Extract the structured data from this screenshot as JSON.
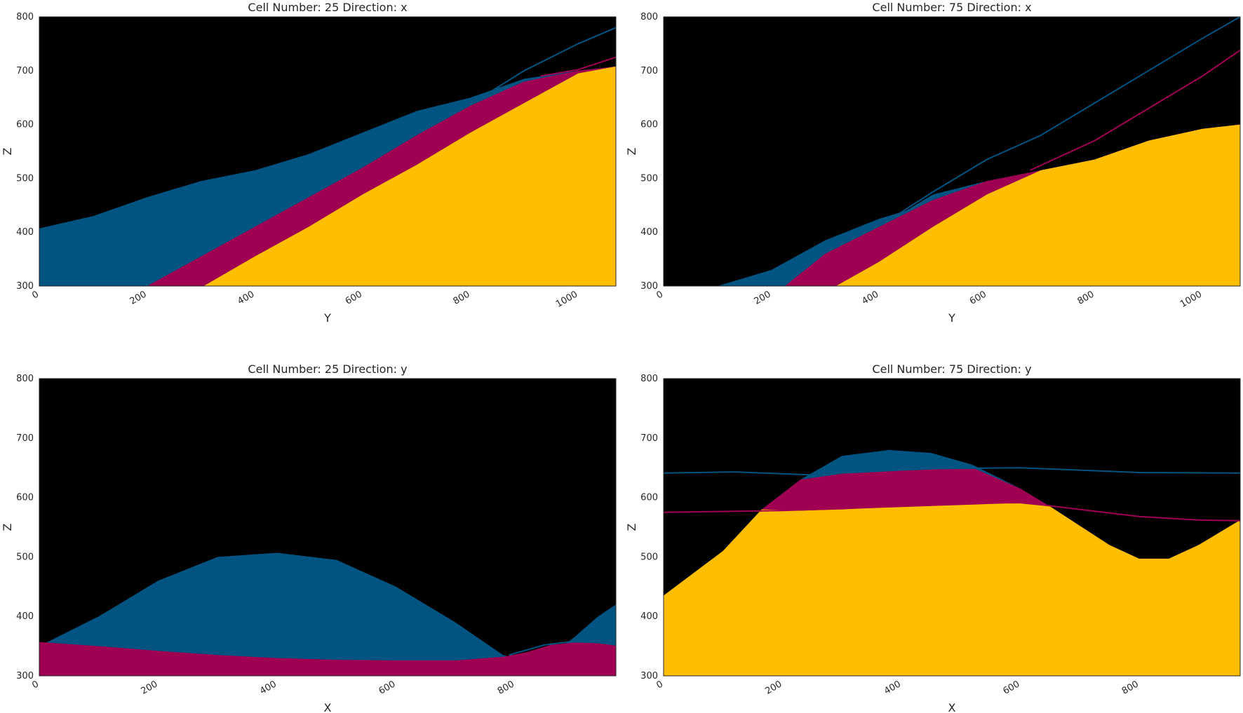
{
  "colors": {
    "background": "#000000",
    "layer_blue": "#015482",
    "layer_magenta": "#9f0052",
    "layer_yellow": "#ffbe00"
  },
  "chart_data": [
    {
      "type": "area",
      "title": "Cell Number: 25 Direction: x",
      "xlabel": "Y",
      "ylabel": "Z",
      "xlim": [
        0,
        1070
      ],
      "ylim": [
        300,
        800
      ],
      "xticks": [
        0,
        200,
        400,
        600,
        800,
        1000
      ],
      "yticks": [
        300,
        400,
        500,
        600,
        700,
        800
      ],
      "grid": false,
      "layers": [
        {
          "color": "#015482",
          "top": [
            [
              0,
              407
            ],
            [
              100,
              430
            ],
            [
              200,
              465
            ],
            [
              300,
              495
            ],
            [
              400,
              515
            ],
            [
              500,
              545
            ],
            [
              600,
              585
            ],
            [
              700,
              625
            ],
            [
              800,
              650
            ],
            [
              900,
              685
            ],
            [
              1000,
              700
            ],
            [
              1070,
              708
            ]
          ]
        },
        {
          "color": "#9f0052",
          "top": [
            [
              200,
              300
            ],
            [
              300,
              355
            ],
            [
              400,
              410
            ],
            [
              500,
              465
            ],
            [
              600,
              520
            ],
            [
              700,
              580
            ],
            [
              800,
              635
            ],
            [
              900,
              680
            ],
            [
              1000,
              700
            ],
            [
              1070,
              708
            ]
          ]
        },
        {
          "color": "#ffbe00",
          "top": [
            [
              305,
              300
            ],
            [
              400,
              355
            ],
            [
              500,
              410
            ],
            [
              600,
              470
            ],
            [
              700,
              525
            ],
            [
              800,
              585
            ],
            [
              900,
              640
            ],
            [
              1000,
              695
            ],
            [
              1070,
              708
            ]
          ]
        }
      ],
      "lines": [
        {
          "color": "#015482",
          "points": [
            [
              820,
              650
            ],
            [
              900,
              700
            ],
            [
              1000,
              750
            ],
            [
              1070,
              780
            ]
          ]
        },
        {
          "color": "#9f0052",
          "points": [
            [
              930,
              690
            ],
            [
              1000,
              702
            ],
            [
              1070,
              725
            ]
          ]
        }
      ]
    },
    {
      "type": "area",
      "title": "Cell Number: 75 Direction: x",
      "xlabel": "Y",
      "ylabel": "Z",
      "xlim": [
        0,
        1070
      ],
      "ylim": [
        300,
        800
      ],
      "xticks": [
        0,
        200,
        400,
        600,
        800,
        1000
      ],
      "yticks": [
        300,
        400,
        500,
        600,
        700,
        800
      ],
      "grid": false,
      "layers": [
        {
          "color": "#015482",
          "top": [
            [
              0,
              300
            ],
            [
              100,
              300
            ],
            [
              200,
              330
            ],
            [
              300,
              385
            ],
            [
              400,
              425
            ],
            [
              450,
              440
            ],
            [
              500,
              470
            ],
            [
              600,
              495
            ],
            [
              700,
              515
            ],
            [
              800,
              535
            ],
            [
              900,
              570
            ],
            [
              1000,
              592
            ],
            [
              1070,
              600
            ]
          ]
        },
        {
          "color": "#9f0052",
          "top": [
            [
              225,
              300
            ],
            [
              300,
              360
            ],
            [
              400,
              410
            ],
            [
              500,
              460
            ],
            [
              600,
              495
            ],
            [
              700,
              515
            ],
            [
              800,
              535
            ],
            [
              900,
              570
            ],
            [
              1000,
              592
            ],
            [
              1070,
              600
            ]
          ]
        },
        {
          "color": "#ffbe00",
          "top": [
            [
              320,
              300
            ],
            [
              400,
              345
            ],
            [
              500,
              410
            ],
            [
              600,
              470
            ],
            [
              700,
              515
            ],
            [
              800,
              535
            ],
            [
              900,
              570
            ],
            [
              1000,
              592
            ],
            [
              1070,
              600
            ]
          ]
        }
      ],
      "lines": [
        {
          "color": "#015482",
          "points": [
            [
              430,
              430
            ],
            [
              500,
              475
            ],
            [
              600,
              535
            ],
            [
              700,
              580
            ],
            [
              800,
              640
            ],
            [
              900,
              700
            ],
            [
              1000,
              760
            ],
            [
              1070,
              800
            ]
          ]
        },
        {
          "color": "#9f0052",
          "points": [
            [
              680,
              515
            ],
            [
              800,
              570
            ],
            [
              900,
              630
            ],
            [
              1000,
              690
            ],
            [
              1070,
              738
            ]
          ]
        }
      ]
    },
    {
      "type": "area",
      "title": "Cell Number: 25 Direction: y",
      "xlabel": "X",
      "ylabel": "Z",
      "xlim": [
        0,
        970
      ],
      "ylim": [
        300,
        800
      ],
      "xticks": [
        0,
        200,
        400,
        600,
        800
      ],
      "yticks": [
        300,
        400,
        500,
        600,
        700,
        800
      ],
      "grid": false,
      "layers": [
        {
          "color": "#015482",
          "top": [
            [
              0,
              350
            ],
            [
              100,
              400
            ],
            [
              200,
              460
            ],
            [
              300,
              500
            ],
            [
              400,
              507
            ],
            [
              500,
              495
            ],
            [
              600,
              450
            ],
            [
              700,
              390
            ],
            [
              780,
              335
            ],
            [
              820,
              325
            ],
            [
              860,
              335
            ],
            [
              900,
              365
            ],
            [
              940,
              400
            ],
            [
              970,
              420
            ]
          ]
        },
        {
          "color": "#9f0052",
          "top": [
            [
              0,
              357
            ],
            [
              100,
              350
            ],
            [
              200,
              342
            ],
            [
              300,
              335
            ],
            [
              400,
              330
            ],
            [
              500,
              327
            ],
            [
              600,
              326
            ],
            [
              700,
              326
            ],
            [
              780,
              332
            ],
            [
              820,
              340
            ],
            [
              860,
              352
            ],
            [
              900,
              356
            ],
            [
              940,
              355
            ],
            [
              970,
              352
            ]
          ]
        }
      ],
      "lines": [
        {
          "color": "#015482",
          "points": [
            [
              790,
              335
            ],
            [
              850,
              352
            ],
            [
              900,
              358
            ],
            [
              940,
              356
            ],
            [
              970,
              352
            ]
          ]
        }
      ]
    },
    {
      "type": "area",
      "title": "Cell Number: 75 Direction: y",
      "xlabel": "X",
      "ylabel": "Z",
      "xlim": [
        0,
        970
      ],
      "ylim": [
        300,
        800
      ],
      "xticks": [
        0,
        200,
        400,
        600,
        800
      ],
      "yticks": [
        300,
        400,
        500,
        600,
        700,
        800
      ],
      "grid": false,
      "layers": [
        {
          "color": "#015482",
          "top": [
            [
              0,
              435
            ],
            [
              100,
              510
            ],
            [
              165,
              580
            ],
            [
              230,
              630
            ],
            [
              300,
              670
            ],
            [
              380,
              680
            ],
            [
              450,
              675
            ],
            [
              520,
              655
            ],
            [
              600,
              615
            ],
            [
              650,
              585
            ],
            [
              750,
              520
            ],
            [
              800,
              497
            ],
            [
              850,
              497
            ],
            [
              900,
              520
            ],
            [
              970,
              562
            ]
          ]
        },
        {
          "color": "#9f0052",
          "top": [
            [
              0,
              435
            ],
            [
              100,
              510
            ],
            [
              165,
              580
            ],
            [
              230,
              630
            ],
            [
              300,
              640
            ],
            [
              400,
              645
            ],
            [
              520,
              650
            ],
            [
              600,
              615
            ],
            [
              650,
              585
            ],
            [
              750,
              520
            ],
            [
              800,
              497
            ],
            [
              850,
              497
            ],
            [
              900,
              520
            ],
            [
              970,
              562
            ]
          ]
        },
        {
          "color": "#ffbe00",
          "top": [
            [
              0,
              435
            ],
            [
              100,
              510
            ],
            [
              165,
              580
            ],
            [
              230,
              578
            ],
            [
              300,
              580
            ],
            [
              400,
              585
            ],
            [
              520,
              590
            ],
            [
              600,
              590
            ],
            [
              650,
              585
            ],
            [
              750,
              520
            ],
            [
              800,
              497
            ],
            [
              850,
              497
            ],
            [
              900,
              520
            ],
            [
              970,
              562
            ]
          ]
        }
      ],
      "lines": [
        {
          "color": "#015482",
          "points": [
            [
              0,
              641
            ],
            [
              120,
              643
            ],
            [
              250,
              638
            ],
            [
              400,
              648
            ],
            [
              600,
              650
            ],
            [
              800,
              642
            ],
            [
              970,
              641
            ]
          ]
        },
        {
          "color": "#9f0052",
          "points": [
            [
              0,
              575
            ],
            [
              200,
              578
            ],
            [
              400,
              585
            ],
            [
              600,
              592
            ],
            [
              700,
              580
            ],
            [
              800,
              568
            ],
            [
              900,
              562
            ],
            [
              970,
              561
            ]
          ]
        }
      ]
    }
  ]
}
